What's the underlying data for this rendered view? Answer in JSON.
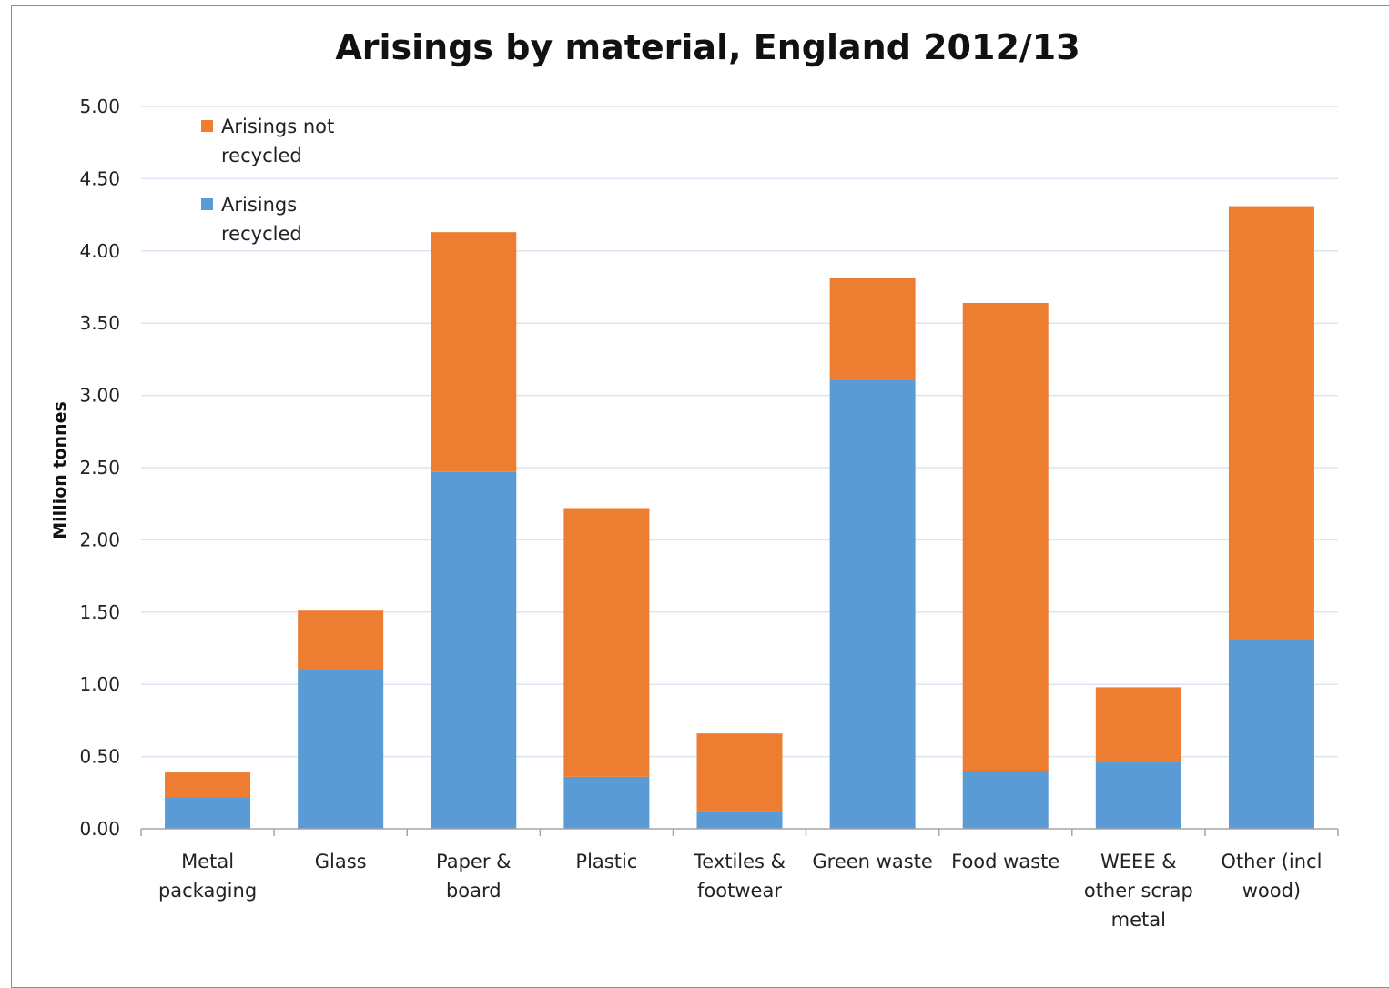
{
  "chart_data": {
    "type": "bar",
    "stacked": true,
    "title": "Arisings by material, England 2012/13",
    "ylabel": "Million tonnes",
    "xlabel": "",
    "ylim": [
      0,
      5
    ],
    "yticks": [
      "0.00",
      "0.50",
      "1.00",
      "1.50",
      "2.00",
      "2.50",
      "3.00",
      "3.50",
      "4.00",
      "4.50",
      "5.00"
    ],
    "grid": true,
    "legend_position": "top-left",
    "categories": [
      [
        "Metal",
        "packaging"
      ],
      [
        "Glass"
      ],
      [
        "Paper &",
        "board"
      ],
      [
        "Plastic"
      ],
      [
        "Textiles &",
        "footwear"
      ],
      [
        "Green waste"
      ],
      [
        "Food waste"
      ],
      [
        "WEEE &",
        "other scrap",
        "metal"
      ],
      [
        "Other (incl",
        "wood)"
      ]
    ],
    "series": [
      {
        "name": "Arisings recycled",
        "color": "#5b9bd5",
        "values": [
          0.22,
          1.1,
          2.47,
          0.36,
          0.12,
          3.11,
          0.4,
          0.46,
          1.31
        ]
      },
      {
        "name": "Arisings not recycled",
        "color": "#ed7d31",
        "values": [
          0.17,
          0.41,
          1.66,
          1.86,
          0.54,
          0.7,
          3.24,
          0.52,
          3.0
        ]
      }
    ],
    "legend": [
      {
        "series": 1,
        "lines": [
          "Arisings not",
          "recycled"
        ]
      },
      {
        "series": 0,
        "lines": [
          "Arisings",
          "recycled"
        ]
      }
    ]
  }
}
